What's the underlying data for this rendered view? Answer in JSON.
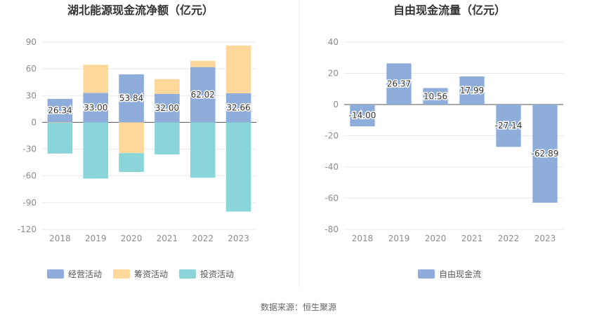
{
  "chart_data": [
    {
      "type": "bar",
      "stacked": true,
      "title": "湖北能源现金流净额（亿元）",
      "categories": [
        "2018",
        "2019",
        "2020",
        "2021",
        "2022",
        "2023"
      ],
      "ylim": [
        -120,
        90
      ],
      "yticks": [
        "90",
        "60",
        "30",
        "0",
        "-30",
        "-60",
        "-90",
        "-120"
      ],
      "grid": true,
      "legend": "bottom",
      "series": [
        {
          "name": "经营活动",
          "color": "#8eaddb",
          "values": [
            26.34,
            33.0,
            53.84,
            32.0,
            62.02,
            32.66
          ],
          "labels": [
            "26.34",
            "33.00",
            "53.84",
            "32.00",
            "62.02",
            "32.66"
          ]
        },
        {
          "name": "筹资活动",
          "color": "#fdd89a",
          "values": [
            -0.5,
            31.5,
            -34.5,
            16.5,
            7.0,
            53.5
          ]
        },
        {
          "name": "投资活动",
          "color": "#89d5da",
          "values": [
            -34.5,
            -63.0,
            -21.0,
            -36.0,
            -62.0,
            -100.0
          ]
        }
      ]
    },
    {
      "type": "bar",
      "title": "自由现金流量（亿元）",
      "categories": [
        "2018",
        "2019",
        "2020",
        "2021",
        "2022",
        "2023"
      ],
      "ylim": [
        -80,
        40
      ],
      "yticks": [
        "40",
        "20",
        "0",
        "-20",
        "-40",
        "-60",
        "-80"
      ],
      "grid": true,
      "legend": "bottom",
      "series": [
        {
          "name": "自由现金流",
          "color": "#8eaddb",
          "values": [
            -14.0,
            26.37,
            10.56,
            17.99,
            -27.14,
            -62.89
          ],
          "labels": [
            "-14.00",
            "26.37",
            "10.56",
            "17.99",
            "-27.14",
            "-62.89"
          ]
        }
      ]
    }
  ],
  "source": "数据来源：恒生聚源"
}
